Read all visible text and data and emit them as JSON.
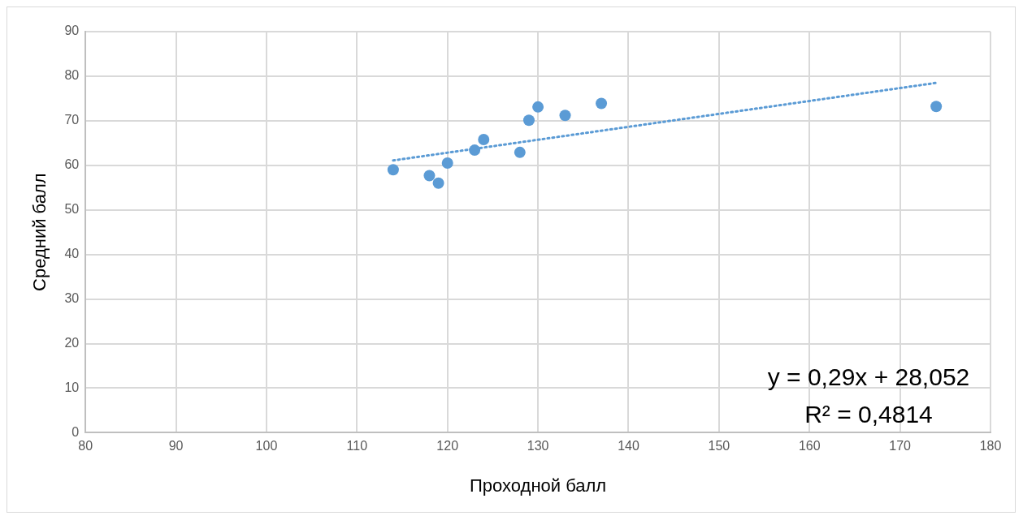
{
  "chart_data": {
    "type": "scatter",
    "xlabel": "Проходной балл",
    "ylabel": "Средний балл",
    "xlim": [
      80,
      180
    ],
    "xticks": [
      80,
      90,
      100,
      110,
      120,
      130,
      140,
      150,
      160,
      170,
      180
    ],
    "ylim": [
      0,
      90
    ],
    "yticks": [
      0,
      10,
      20,
      30,
      40,
      50,
      60,
      70,
      80,
      90
    ],
    "grid": true,
    "legend": false,
    "marker": "circle",
    "series": [
      {
        "type": "scatter",
        "color": "#5b9bd5",
        "x": [
          114,
          118,
          119,
          120,
          123,
          124,
          128,
          129,
          130,
          133,
          137,
          174
        ],
        "values": [
          59,
          57.7,
          56,
          60.5,
          63.4,
          65.8,
          62.9,
          70.1,
          73.1,
          71.2,
          73.9,
          73.2
        ]
      },
      {
        "type": "line",
        "color": "#5b9bd5",
        "line_style": "dotted",
        "marker": "none",
        "x": [
          114,
          174
        ],
        "values": [
          61.1,
          78.5
        ]
      }
    ],
    "annotations": [
      "y = 0,29x + 28,052",
      "R² = 0,4814"
    ]
  }
}
